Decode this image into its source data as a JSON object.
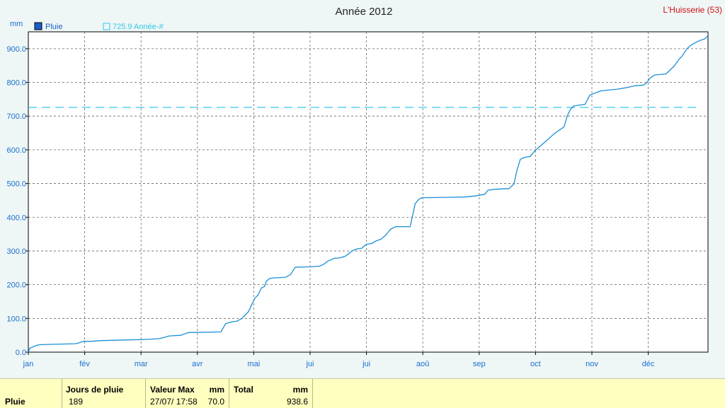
{
  "location": "L'Huisserie (53)",
  "chart_data": {
    "type": "line",
    "title": "Année 2012",
    "ylabel": "mm",
    "ylim": [
      0,
      950
    ],
    "yticks": [
      "0.0",
      "100.0",
      "200.0",
      "300.0",
      "400.0",
      "500.0",
      "600.0",
      "700.0",
      "800.0",
      "900.0"
    ],
    "xticks": [
      "jan",
      "fév",
      "mar",
      "avr",
      "mai",
      "jui",
      "jui",
      "aoû",
      "sep",
      "oct",
      "nov",
      "déc"
    ],
    "grid": true,
    "legend_position": "top-left",
    "series": [
      {
        "name": "Pluie",
        "color": "#1a8fd6",
        "x_unit": "day_of_year",
        "points": [
          [
            1,
            0
          ],
          [
            2,
            12
          ],
          [
            4,
            16
          ],
          [
            6,
            20
          ],
          [
            8,
            22
          ],
          [
            15,
            23
          ],
          [
            30,
            25
          ],
          [
            32,
            27
          ],
          [
            35,
            32
          ],
          [
            40,
            32
          ],
          [
            45,
            34
          ],
          [
            60,
            36
          ],
          [
            69,
            37
          ],
          [
            75,
            38
          ],
          [
            82,
            40
          ],
          [
            86,
            45
          ],
          [
            88,
            48
          ],
          [
            95,
            50
          ],
          [
            100,
            58
          ],
          [
            120,
            60
          ],
          [
            123,
            85
          ],
          [
            127,
            90
          ],
          [
            130,
            92
          ],
          [
            133,
            100
          ],
          [
            135,
            110
          ],
          [
            137,
            120
          ],
          [
            139,
            140
          ],
          [
            141,
            160
          ],
          [
            143,
            170
          ],
          [
            145,
            190
          ],
          [
            147,
            195
          ],
          [
            148,
            210
          ],
          [
            150,
            218
          ],
          [
            152,
            220
          ],
          [
            160,
            222
          ],
          [
            163,
            230
          ],
          [
            165,
            245
          ],
          [
            166,
            252
          ],
          [
            175,
            253
          ],
          [
            181,
            255
          ],
          [
            184,
            262
          ],
          [
            186,
            270
          ],
          [
            190,
            278
          ],
          [
            194,
            280
          ],
          [
            197,
            285
          ],
          [
            199,
            292
          ],
          [
            201,
            300
          ],
          [
            204,
            306
          ],
          [
            207,
            308
          ],
          [
            210,
            320
          ],
          [
            213,
            322
          ],
          [
            216,
            330
          ],
          [
            219,
            335
          ],
          [
            222,
            348
          ],
          [
            225,
            365
          ],
          [
            228,
            372
          ],
          [
            237,
            372
          ],
          [
            238,
            395
          ],
          [
            240,
            440
          ],
          [
            242,
            452
          ],
          [
            244,
            458
          ],
          [
            270,
            460
          ],
          [
            277,
            463
          ],
          [
            283,
            468
          ],
          [
            285,
            480
          ],
          [
            289,
            483
          ],
          [
            298,
            485
          ],
          [
            301,
            498
          ],
          [
            303,
            540
          ],
          [
            305,
            572
          ],
          [
            308,
            578
          ],
          [
            311,
            580
          ],
          [
            314,
            597
          ],
          [
            317,
            610
          ],
          [
            320,
            622
          ],
          [
            323,
            635
          ],
          [
            326,
            648
          ],
          [
            329,
            658
          ],
          [
            332,
            668
          ],
          [
            334,
            700
          ],
          [
            336,
            720
          ],
          [
            338,
            730
          ],
          [
            345,
            735
          ],
          [
            348,
            762
          ],
          [
            350,
            766
          ],
          [
            355,
            775
          ],
          [
            361,
            778
          ],
          [
            365,
            780
          ],
          [
            370,
            784
          ],
          [
            376,
            790
          ],
          [
            381,
            792
          ],
          [
            383,
            798
          ],
          [
            385,
            812
          ],
          [
            388,
            822
          ],
          [
            395,
            825
          ],
          [
            400,
            848
          ],
          [
            403,
            868
          ],
          [
            405,
            878
          ],
          [
            408,
            900
          ],
          [
            411,
            912
          ],
          [
            414,
            920
          ],
          [
            417,
            926
          ],
          [
            419,
            929
          ],
          [
            421,
            938.6
          ]
        ]
      },
      {
        "name": "725.9 Année-#",
        "color": "#33c8e8",
        "dashed": true,
        "constant": 725.9
      }
    ]
  },
  "summary": {
    "row_label": "Pluie",
    "jours_header": "Jours de pluie",
    "jours_value": "189",
    "valeur_max_header": "Valeur Max",
    "valeur_max_unit": "mm",
    "valeur_max_date": "27/07/  17:58",
    "valeur_max_value": "70.0",
    "total_header": "Total",
    "total_unit": "mm",
    "total_value": "938.6"
  }
}
